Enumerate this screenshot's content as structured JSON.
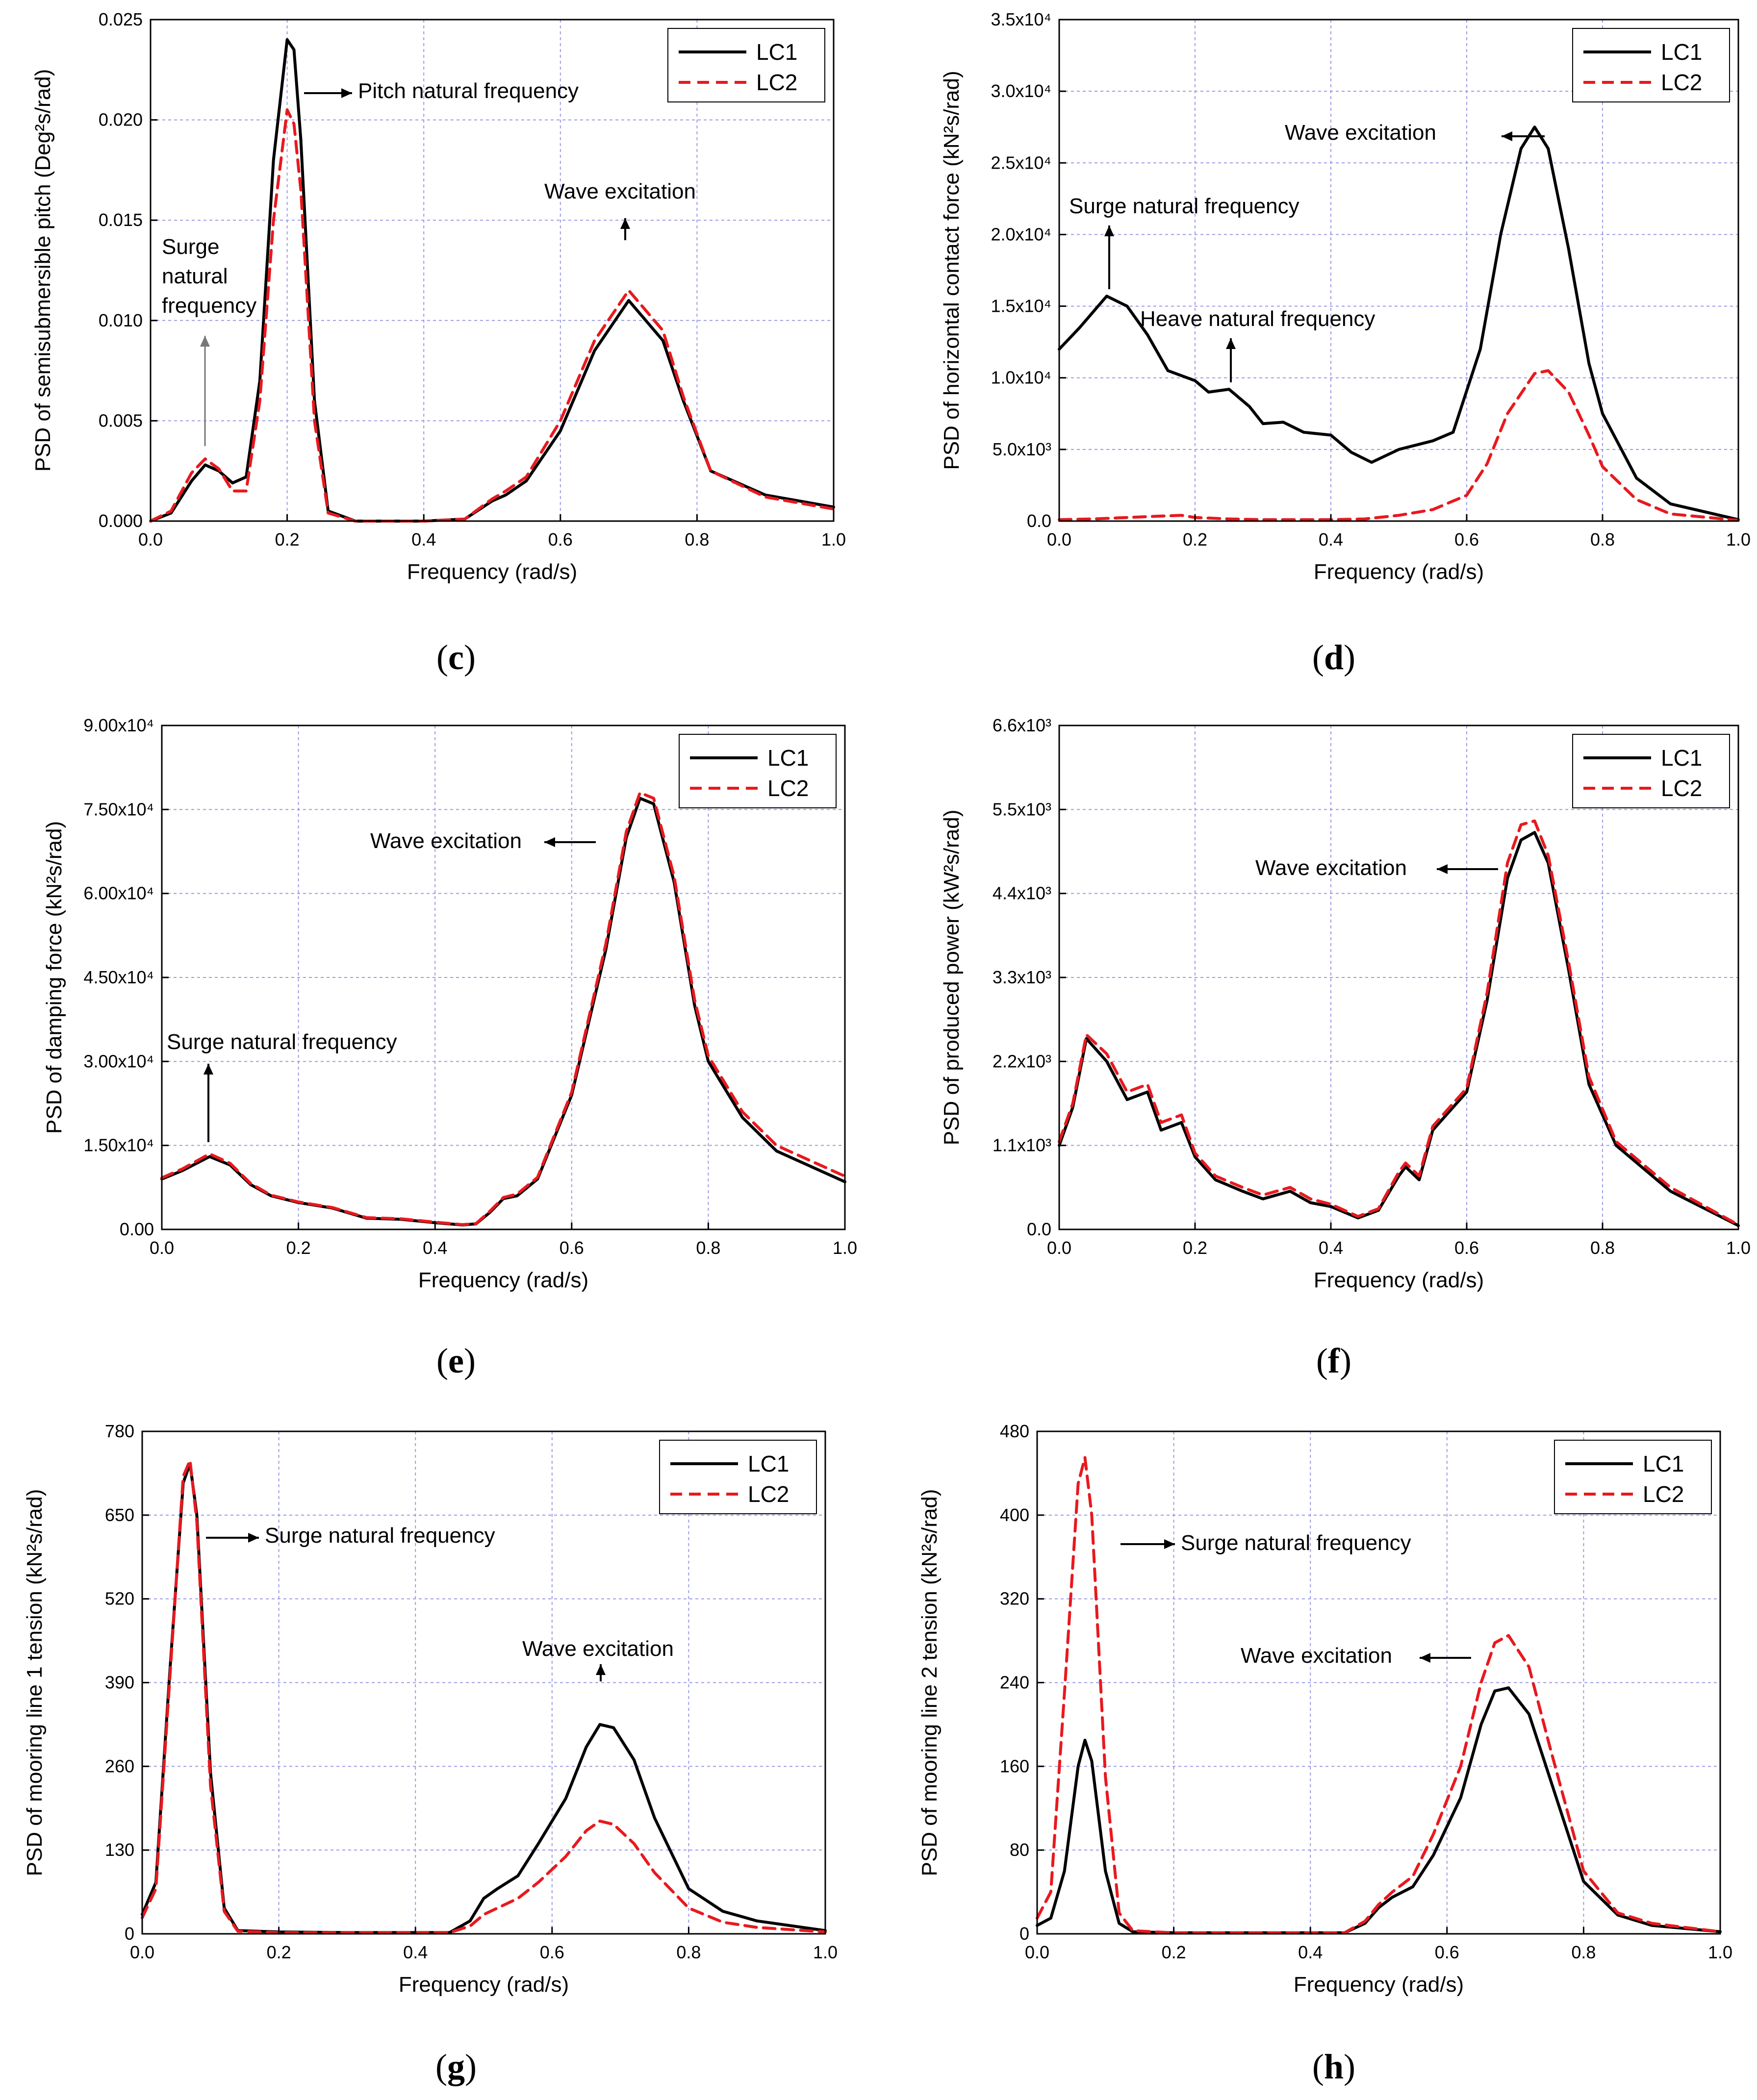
{
  "colors": {
    "lc1": "#000000",
    "lc2": "#e8191e",
    "grid": "#9a9ae6"
  },
  "charts": [
    {
      "id": "c",
      "caption_open": "(",
      "caption_letter": "c",
      "caption_close": ")",
      "ylabel": "PSD of semisubmersible pitch (Deg²s/rad)",
      "xlabel": "Frequency (rad/s)",
      "y_ticks": [
        "0.000",
        "0.005",
        "0.010",
        "0.015",
        "0.020",
        "0.025"
      ],
      "annotations": [
        "Pitch natural frequency",
        "Wave excitation",
        "Surge",
        "natural",
        "frequency"
      ]
    },
    {
      "id": "d",
      "caption_open": "(",
      "caption_letter": "d",
      "caption_close": ")",
      "ylabel": "PSD of horizontal contact force (kN²s/rad)",
      "xlabel": "Frequency (rad/s)",
      "y_ticks": [
        "0.0",
        "5.0x10³",
        "1.0x10⁴",
        "1.5x10⁴",
        "2.0x10⁴",
        "2.5x10⁴",
        "3.0x10⁴",
        "3.5x10⁴"
      ],
      "annotations": [
        "Wave excitation",
        "Surge natural frequency",
        "Heave natural frequency"
      ]
    },
    {
      "id": "e",
      "caption_open": "(",
      "caption_letter": "e",
      "caption_close": ")",
      "ylabel": "PSD of damping force (kN²s/rad)",
      "xlabel": "Frequency (rad/s)",
      "y_ticks": [
        "0.00",
        "1.50x10⁴",
        "3.00x10⁴",
        "4.50x10⁴",
        "6.00x10⁴",
        "7.50x10⁴",
        "9.00x10⁴"
      ],
      "annotations": [
        "Wave excitation",
        "Surge natural frequency"
      ]
    },
    {
      "id": "f",
      "caption_open": "(",
      "caption_letter": "f",
      "caption_close": ")",
      "ylabel": "PSD of produced power (kW²s/rad)",
      "xlabel": "Frequency (rad/s)",
      "y_ticks": [
        "0.0",
        "1.1x10³",
        "2.2x10³",
        "3.3x10³",
        "4.4x10³",
        "5.5x10³",
        "6.6x10³"
      ],
      "annotations": [
        "Wave excitation"
      ]
    },
    {
      "id": "g",
      "caption_open": "(",
      "caption_letter": "g",
      "caption_close": ")",
      "ylabel": "PSD of mooring line 1 tension (kN²s/rad)",
      "xlabel": "Frequency (rad/s)",
      "y_ticks": [
        "0",
        "130",
        "260",
        "390",
        "520",
        "650",
        "780"
      ],
      "annotations": [
        "Surge natural frequency",
        "Wave excitation"
      ]
    },
    {
      "id": "h",
      "caption_open": "(",
      "caption_letter": "h",
      "caption_close": ")",
      "ylabel": "PSD of mooring line 2 tension (kN²s/rad)",
      "xlabel": "Frequency (rad/s)",
      "y_ticks": [
        "0",
        "80",
        "160",
        "240",
        "320",
        "400",
        "480"
      ],
      "annotations": [
        "Surge natural frequency",
        "Wave excitation"
      ]
    }
  ],
  "legend": {
    "lc1": "LC1",
    "lc2": "LC2"
  },
  "x_ticks": [
    "0.0",
    "0.2",
    "0.4",
    "0.6",
    "0.8",
    "1.0"
  ],
  "chart_data": [
    {
      "id": "c",
      "type": "line",
      "xlim": [
        0,
        1
      ],
      "ylim": [
        0,
        0.025
      ],
      "grid": true,
      "legend": "top-right",
      "xlabel": "Frequency (rad/s)",
      "ylabel": "PSD of semisubmersible pitch (Deg²s/rad)",
      "series": [
        {
          "name": "LC1",
          "style": "solid",
          "x": [
            0,
            0.03,
            0.06,
            0.08,
            0.1,
            0.12,
            0.14,
            0.16,
            0.18,
            0.2,
            0.21,
            0.22,
            0.24,
            0.26,
            0.3,
            0.4,
            0.46,
            0.5,
            0.52,
            0.55,
            0.6,
            0.65,
            0.7,
            0.75,
            0.78,
            0.82,
            0.9,
            1.0
          ],
          "y": [
            0,
            0.0004,
            0.002,
            0.0028,
            0.0025,
            0.0019,
            0.0022,
            0.007,
            0.018,
            0.024,
            0.0235,
            0.019,
            0.006,
            0.0005,
            0,
            0,
            0.0001,
            0.001,
            0.0013,
            0.002,
            0.0045,
            0.0085,
            0.011,
            0.009,
            0.006,
            0.0025,
            0.0013,
            0.0007
          ]
        },
        {
          "name": "LC2",
          "style": "dashed",
          "x": [
            0,
            0.03,
            0.06,
            0.08,
            0.1,
            0.12,
            0.14,
            0.16,
            0.18,
            0.2,
            0.21,
            0.22,
            0.24,
            0.26,
            0.3,
            0.4,
            0.46,
            0.5,
            0.52,
            0.55,
            0.6,
            0.65,
            0.7,
            0.75,
            0.78,
            0.82,
            0.9,
            1.0
          ],
          "y": [
            0,
            0.0005,
            0.0024,
            0.0031,
            0.0026,
            0.0015,
            0.0015,
            0.006,
            0.015,
            0.0205,
            0.0198,
            0.0165,
            0.005,
            0.0004,
            0,
            0,
            0.0001,
            0.0011,
            0.0015,
            0.0022,
            0.005,
            0.009,
            0.0115,
            0.0095,
            0.0062,
            0.0025,
            0.0012,
            0.0006
          ]
        }
      ]
    },
    {
      "id": "d",
      "type": "line",
      "xlim": [
        0,
        1
      ],
      "ylim": [
        0,
        35000
      ],
      "grid": true,
      "legend": "top-right",
      "xlabel": "Frequency (rad/s)",
      "ylabel": "PSD of horizontal contact force (kN²s/rad)",
      "series": [
        {
          "name": "LC1",
          "style": "solid",
          "x": [
            0,
            0.03,
            0.07,
            0.1,
            0.13,
            0.16,
            0.2,
            0.22,
            0.25,
            0.28,
            0.3,
            0.33,
            0.36,
            0.4,
            0.43,
            0.46,
            0.5,
            0.55,
            0.58,
            0.62,
            0.65,
            0.68,
            0.7,
            0.72,
            0.75,
            0.78,
            0.8,
            0.85,
            0.9,
            1.0
          ],
          "y": [
            12000,
            13500,
            15700,
            15000,
            13000,
            10500,
            9800,
            9000,
            9200,
            8000,
            6800,
            6900,
            6200,
            6000,
            4800,
            4100,
            5000,
            5600,
            6200,
            12000,
            20000,
            26000,
            27500,
            26000,
            19000,
            11000,
            7500,
            3000,
            1200,
            100
          ]
        },
        {
          "name": "LC2",
          "style": "dashed",
          "x": [
            0,
            0.05,
            0.1,
            0.15,
            0.18,
            0.2,
            0.25,
            0.3,
            0.4,
            0.45,
            0.5,
            0.55,
            0.6,
            0.63,
            0.66,
            0.7,
            0.72,
            0.75,
            0.78,
            0.8,
            0.85,
            0.9,
            1.0
          ],
          "y": [
            100,
            150,
            250,
            350,
            400,
            250,
            150,
            100,
            100,
            150,
            400,
            800,
            1800,
            4000,
            7500,
            10300,
            10500,
            9000,
            6000,
            3800,
            1500,
            500,
            50
          ]
        }
      ]
    },
    {
      "id": "e",
      "type": "line",
      "xlim": [
        0,
        1
      ],
      "ylim": [
        0,
        90000
      ],
      "grid": true,
      "legend": "top-right",
      "xlabel": "Frequency (rad/s)",
      "ylabel": "PSD of damping force (kN²s/rad)",
      "series": [
        {
          "name": "LC1",
          "style": "solid",
          "x": [
            0,
            0.03,
            0.07,
            0.1,
            0.13,
            0.16,
            0.2,
            0.25,
            0.3,
            0.35,
            0.4,
            0.44,
            0.46,
            0.48,
            0.5,
            0.52,
            0.55,
            0.6,
            0.65,
            0.68,
            0.7,
            0.72,
            0.75,
            0.78,
            0.8,
            0.85,
            0.9,
            1.0
          ],
          "y": [
            9000,
            10500,
            13000,
            11500,
            8000,
            6000,
            4800,
            3800,
            2000,
            1800,
            1200,
            800,
            1000,
            3000,
            5500,
            6000,
            9000,
            24000,
            50000,
            70000,
            77000,
            76000,
            62000,
            40000,
            30000,
            20000,
            14000,
            8500
          ]
        },
        {
          "name": "LC2",
          "style": "dashed",
          "x": [
            0,
            0.03,
            0.07,
            0.1,
            0.13,
            0.16,
            0.2,
            0.25,
            0.3,
            0.35,
            0.4,
            0.44,
            0.46,
            0.48,
            0.5,
            0.52,
            0.55,
            0.6,
            0.65,
            0.68,
            0.7,
            0.72,
            0.75,
            0.78,
            0.8,
            0.85,
            0.9,
            1.0
          ],
          "y": [
            9200,
            10800,
            13500,
            11800,
            8200,
            6100,
            4900,
            3900,
            2100,
            1900,
            1300,
            850,
            1050,
            3200,
            5700,
            6300,
            9300,
            24500,
            51000,
            71000,
            78000,
            77000,
            63000,
            41000,
            31000,
            21000,
            15000,
            9500
          ]
        }
      ]
    },
    {
      "id": "f",
      "type": "line",
      "xlim": [
        0,
        1
      ],
      "ylim": [
        0,
        6600
      ],
      "grid": true,
      "legend": "top-right",
      "xlabel": "Frequency (rad/s)",
      "ylabel": "PSD of produced power (kW²s/rad)",
      "series": [
        {
          "name": "LC1",
          "style": "solid",
          "x": [
            0,
            0.02,
            0.04,
            0.07,
            0.1,
            0.13,
            0.15,
            0.18,
            0.2,
            0.23,
            0.27,
            0.3,
            0.34,
            0.37,
            0.4,
            0.44,
            0.47,
            0.5,
            0.51,
            0.53,
            0.55,
            0.6,
            0.63,
            0.66,
            0.68,
            0.7,
            0.72,
            0.75,
            0.78,
            0.82,
            0.9,
            1.0
          ],
          "y": [
            1100,
            1600,
            2500,
            2200,
            1700,
            1800,
            1300,
            1400,
            950,
            650,
            500,
            400,
            500,
            350,
            300,
            150,
            250,
            700,
            820,
            650,
            1300,
            1800,
            3000,
            4600,
            5100,
            5200,
            4800,
            3400,
            1900,
            1100,
            500,
            50
          ]
        },
        {
          "name": "LC2",
          "style": "dashed",
          "x": [
            0,
            0.02,
            0.04,
            0.07,
            0.1,
            0.13,
            0.15,
            0.18,
            0.2,
            0.23,
            0.27,
            0.3,
            0.34,
            0.37,
            0.4,
            0.44,
            0.47,
            0.5,
            0.51,
            0.53,
            0.55,
            0.6,
            0.63,
            0.66,
            0.68,
            0.7,
            0.72,
            0.75,
            0.78,
            0.82,
            0.9,
            1.0
          ],
          "y": [
            1150,
            1650,
            2550,
            2300,
            1800,
            1900,
            1400,
            1500,
            1000,
            700,
            550,
            450,
            550,
            400,
            330,
            170,
            270,
            750,
            870,
            700,
            1350,
            1850,
            3100,
            4800,
            5300,
            5350,
            4900,
            3500,
            2000,
            1150,
            550,
            60
          ]
        }
      ]
    },
    {
      "id": "g",
      "type": "line",
      "xlim": [
        0,
        1
      ],
      "ylim": [
        0,
        780
      ],
      "grid": true,
      "legend": "top-right",
      "xlabel": "Frequency (rad/s)",
      "ylabel": "PSD of mooring line 1 tension (kN²s/rad)",
      "series": [
        {
          "name": "LC1",
          "style": "solid",
          "x": [
            0,
            0.02,
            0.04,
            0.06,
            0.07,
            0.08,
            0.1,
            0.12,
            0.14,
            0.2,
            0.3,
            0.45,
            0.48,
            0.5,
            0.52,
            0.55,
            0.58,
            0.62,
            0.65,
            0.67,
            0.69,
            0.72,
            0.75,
            0.8,
            0.85,
            0.9,
            1.0
          ],
          "y": [
            30,
            80,
            400,
            700,
            730,
            650,
            250,
            40,
            5,
            3,
            2,
            2,
            20,
            55,
            70,
            90,
            140,
            210,
            290,
            325,
            320,
            270,
            180,
            70,
            35,
            20,
            5
          ]
        },
        {
          "name": "LC2",
          "style": "dashed",
          "x": [
            0,
            0.02,
            0.04,
            0.06,
            0.07,
            0.08,
            0.1,
            0.12,
            0.14,
            0.2,
            0.3,
            0.45,
            0.48,
            0.5,
            0.52,
            0.55,
            0.58,
            0.62,
            0.65,
            0.67,
            0.69,
            0.72,
            0.75,
            0.8,
            0.85,
            0.9,
            1.0
          ],
          "y": [
            25,
            70,
            390,
            710,
            735,
            640,
            230,
            35,
            4,
            2,
            2,
            2,
            12,
            30,
            40,
            55,
            80,
            120,
            160,
            175,
            170,
            140,
            95,
            40,
            18,
            10,
            3
          ]
        }
      ]
    },
    {
      "id": "h",
      "type": "line",
      "xlim": [
        0,
        1
      ],
      "ylim": [
        0,
        480
      ],
      "grid": true,
      "legend": "top-right",
      "xlabel": "Frequency (rad/s)",
      "ylabel": "PSD of mooring line 2 tension (kN²s/rad)",
      "series": [
        {
          "name": "LC1",
          "style": "solid",
          "x": [
            0,
            0.02,
            0.04,
            0.06,
            0.07,
            0.08,
            0.1,
            0.12,
            0.14,
            0.2,
            0.3,
            0.45,
            0.48,
            0.5,
            0.52,
            0.55,
            0.58,
            0.62,
            0.65,
            0.67,
            0.69,
            0.72,
            0.75,
            0.8,
            0.85,
            0.9,
            1.0
          ],
          "y": [
            8,
            15,
            60,
            160,
            185,
            165,
            60,
            10,
            2,
            1,
            1,
            1,
            10,
            25,
            35,
            45,
            75,
            130,
            200,
            232,
            235,
            210,
            150,
            50,
            18,
            8,
            2
          ]
        },
        {
          "name": "LC2",
          "style": "dashed",
          "x": [
            0,
            0.02,
            0.04,
            0.06,
            0.07,
            0.08,
            0.1,
            0.12,
            0.14,
            0.2,
            0.3,
            0.45,
            0.48,
            0.5,
            0.52,
            0.55,
            0.58,
            0.62,
            0.65,
            0.67,
            0.69,
            0.72,
            0.75,
            0.8,
            0.85,
            0.9,
            1.0
          ],
          "y": [
            15,
            40,
            230,
            430,
            455,
            400,
            150,
            20,
            3,
            1,
            1,
            1,
            12,
            28,
            40,
            55,
            95,
            160,
            240,
            278,
            285,
            255,
            180,
            60,
            20,
            10,
            2
          ]
        }
      ]
    }
  ]
}
